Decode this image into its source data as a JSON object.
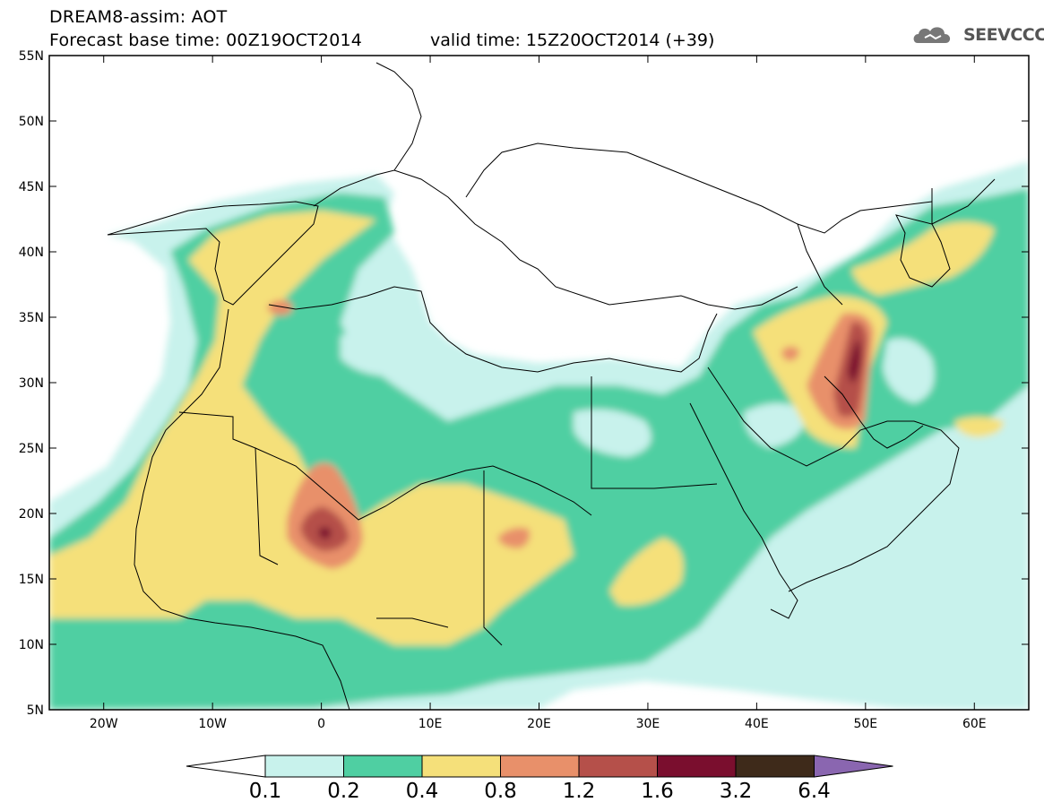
{
  "header": {
    "title": "DREAM8-assim: AOT",
    "base_time": "Forecast base time: 00Z19OCT2014",
    "valid_time": "valid time: 15Z20OCT2014 (+39)"
  },
  "logo": {
    "text": "SEEVCCC",
    "icon": "cloud-icon"
  },
  "map": {
    "projection": "lat-lon",
    "lon_range": [
      -25,
      65
    ],
    "lat_range": [
      5,
      55
    ],
    "lat_ticks": [
      "5N",
      "10N",
      "15N",
      "20N",
      "25N",
      "30N",
      "35N",
      "40N",
      "45N",
      "50N",
      "55N"
    ],
    "lon_ticks": [
      "20W",
      "10W",
      "0",
      "10E",
      "20E",
      "30E",
      "40E",
      "50E",
      "60E"
    ],
    "field": "Aerosol Optical Thickness",
    "max_region": "near 1E 19N and 49E 32N"
  },
  "colorbar": {
    "levels": [
      "0.1",
      "0.2",
      "0.4",
      "0.8",
      "1.2",
      "1.6",
      "3.2",
      "6.4"
    ],
    "colors": [
      "#c8f2ec",
      "#4fcfa2",
      "#f5e07a",
      "#e8906a",
      "#b5504a",
      "#7a0e2e",
      "#3e2a1a",
      "#8a66b0"
    ]
  }
}
